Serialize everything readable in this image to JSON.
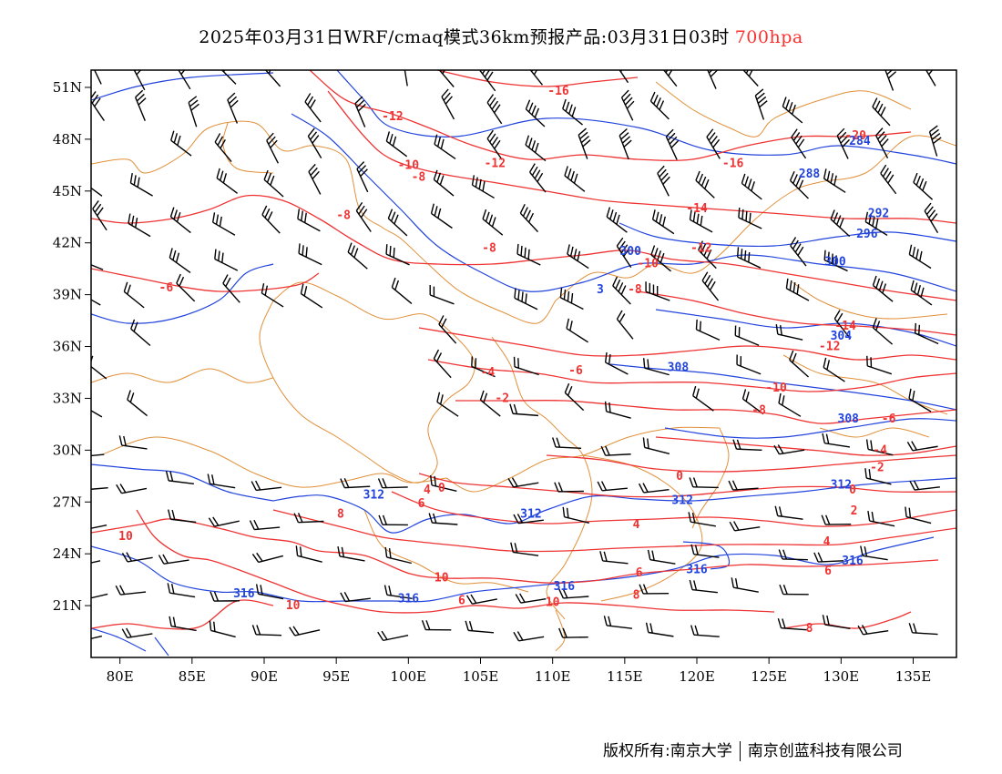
{
  "title": {
    "text": "2025年03月31日WRF/cmaq模式36km预报产品:03月31日03时",
    "level": "700hpa"
  },
  "axes": {
    "x_ticks": [
      "80E",
      "85E",
      "90E",
      "95E",
      "100E",
      "105E",
      "110E",
      "115E",
      "120E",
      "125E",
      "130E",
      "135E"
    ],
    "x_values": [
      80,
      85,
      90,
      95,
      100,
      105,
      110,
      115,
      120,
      125,
      130,
      135
    ],
    "y_ticks": [
      "51N",
      "48N",
      "45N",
      "42N",
      "39N",
      "36N",
      "33N",
      "30N",
      "27N",
      "24N",
      "21N"
    ],
    "y_values": [
      51,
      48,
      45,
      42,
      39,
      36,
      33,
      30,
      27,
      24,
      21
    ],
    "lon_range": [
      78,
      138
    ],
    "lat_range": [
      18,
      52
    ]
  },
  "colors": {
    "temperature": "#ee3333",
    "height": "#2244dd",
    "boundary": "#e0903a",
    "barb": "#000000",
    "level_text": "#ff3030"
  },
  "temperature_labels": [
    {
      "text": "-16",
      "lon": 110.4,
      "lat": 50.8
    },
    {
      "text": "-12",
      "lon": 98.9,
      "lat": 49.3
    },
    {
      "text": "-10",
      "lon": 100.0,
      "lat": 46.5
    },
    {
      "text": "-8",
      "lon": 100.7,
      "lat": 45.8
    },
    {
      "text": "-12",
      "lon": 106.0,
      "lat": 46.6
    },
    {
      "text": "-20",
      "lon": 131.0,
      "lat": 48.2
    },
    {
      "text": "-16",
      "lon": 122.5,
      "lat": 46.6
    },
    {
      "text": "-14",
      "lon": 120.0,
      "lat": 44.0
    },
    {
      "text": "-8",
      "lon": 95.5,
      "lat": 43.6
    },
    {
      "text": "-8",
      "lon": 105.6,
      "lat": 41.7
    },
    {
      "text": "-6",
      "lon": 83.2,
      "lat": 39.4
    },
    {
      "text": "-12",
      "lon": 120.3,
      "lat": 41.7
    },
    {
      "text": "-10",
      "lon": 116.6,
      "lat": 40.8
    },
    {
      "text": "-8",
      "lon": 115.7,
      "lat": 39.3
    },
    {
      "text": "-14",
      "lon": 130.3,
      "lat": 37.2
    },
    {
      "text": "-12",
      "lon": 129.2,
      "lat": 36.0
    },
    {
      "text": "-4",
      "lon": 105.5,
      "lat": 34.5
    },
    {
      "text": "-6",
      "lon": 111.6,
      "lat": 34.6
    },
    {
      "text": "-10",
      "lon": 125.5,
      "lat": 33.6
    },
    {
      "text": "-2",
      "lon": 106.5,
      "lat": 33.0
    },
    {
      "text": "-8",
      "lon": 124.3,
      "lat": 32.3
    },
    {
      "text": "-6",
      "lon": 133.3,
      "lat": 31.8
    },
    {
      "text": "-4",
      "lon": 132.7,
      "lat": 30.0
    },
    {
      "text": "-2",
      "lon": 132.5,
      "lat": 29.0
    },
    {
      "text": "0",
      "lon": 118.8,
      "lat": 28.5
    },
    {
      "text": "0",
      "lon": 130.8,
      "lat": 27.7
    },
    {
      "text": "0",
      "lon": 102.3,
      "lat": 27.8
    },
    {
      "text": "4",
      "lon": 101.3,
      "lat": 27.7
    },
    {
      "text": "6",
      "lon": 100.9,
      "lat": 26.9
    },
    {
      "text": "8",
      "lon": 95.3,
      "lat": 26.3
    },
    {
      "text": "2",
      "lon": 130.9,
      "lat": 26.5
    },
    {
      "text": "4",
      "lon": 115.8,
      "lat": 25.7
    },
    {
      "text": "4",
      "lon": 129.0,
      "lat": 24.7
    },
    {
      "text": "6",
      "lon": 129.1,
      "lat": 23.0
    },
    {
      "text": "6",
      "lon": 116.0,
      "lat": 22.9
    },
    {
      "text": "10",
      "lon": 80.4,
      "lat": 25.0
    },
    {
      "text": "10",
      "lon": 102.3,
      "lat": 22.6
    },
    {
      "text": "8",
      "lon": 115.8,
      "lat": 21.6
    },
    {
      "text": "10",
      "lon": 92.0,
      "lat": 21.0
    },
    {
      "text": "10",
      "lon": 110.0,
      "lat": 21.2
    },
    {
      "text": "6",
      "lon": 103.7,
      "lat": 21.3
    },
    {
      "text": "8",
      "lon": 127.8,
      "lat": 19.7
    }
  ],
  "height_labels": [
    {
      "text": "284",
      "lon": 131.3,
      "lat": 47.9
    },
    {
      "text": "288",
      "lon": 127.8,
      "lat": 46.0
    },
    {
      "text": "292",
      "lon": 132.6,
      "lat": 43.7
    },
    {
      "text": "296",
      "lon": 131.8,
      "lat": 42.5
    },
    {
      "text": "300",
      "lon": 115.4,
      "lat": 41.5
    },
    {
      "text": "300",
      "lon": 129.6,
      "lat": 40.9
    },
    {
      "text": "3",
      "lon": 113.3,
      "lat": 39.3
    },
    {
      "text": "304",
      "lon": 130.0,
      "lat": 36.6
    },
    {
      "text": "308",
      "lon": 118.7,
      "lat": 34.8
    },
    {
      "text": "308",
      "lon": 130.5,
      "lat": 31.8
    },
    {
      "text": "312",
      "lon": 130.0,
      "lat": 28.0
    },
    {
      "text": "312",
      "lon": 97.6,
      "lat": 27.4
    },
    {
      "text": "312",
      "lon": 119.0,
      "lat": 27.1
    },
    {
      "text": "312",
      "lon": 108.5,
      "lat": 26.3
    },
    {
      "text": "316",
      "lon": 130.8,
      "lat": 23.6
    },
    {
      "text": "316",
      "lon": 120.0,
      "lat": 23.1
    },
    {
      "text": "316",
      "lon": 110.8,
      "lat": 22.1
    },
    {
      "text": "316",
      "lon": 100.0,
      "lat": 21.4
    },
    {
      "text": "316",
      "lon": 88.6,
      "lat": 21.7
    }
  ],
  "footer": {
    "left": "版权所有:南京大学",
    "right": "南京创蓝科技有限公司"
  }
}
